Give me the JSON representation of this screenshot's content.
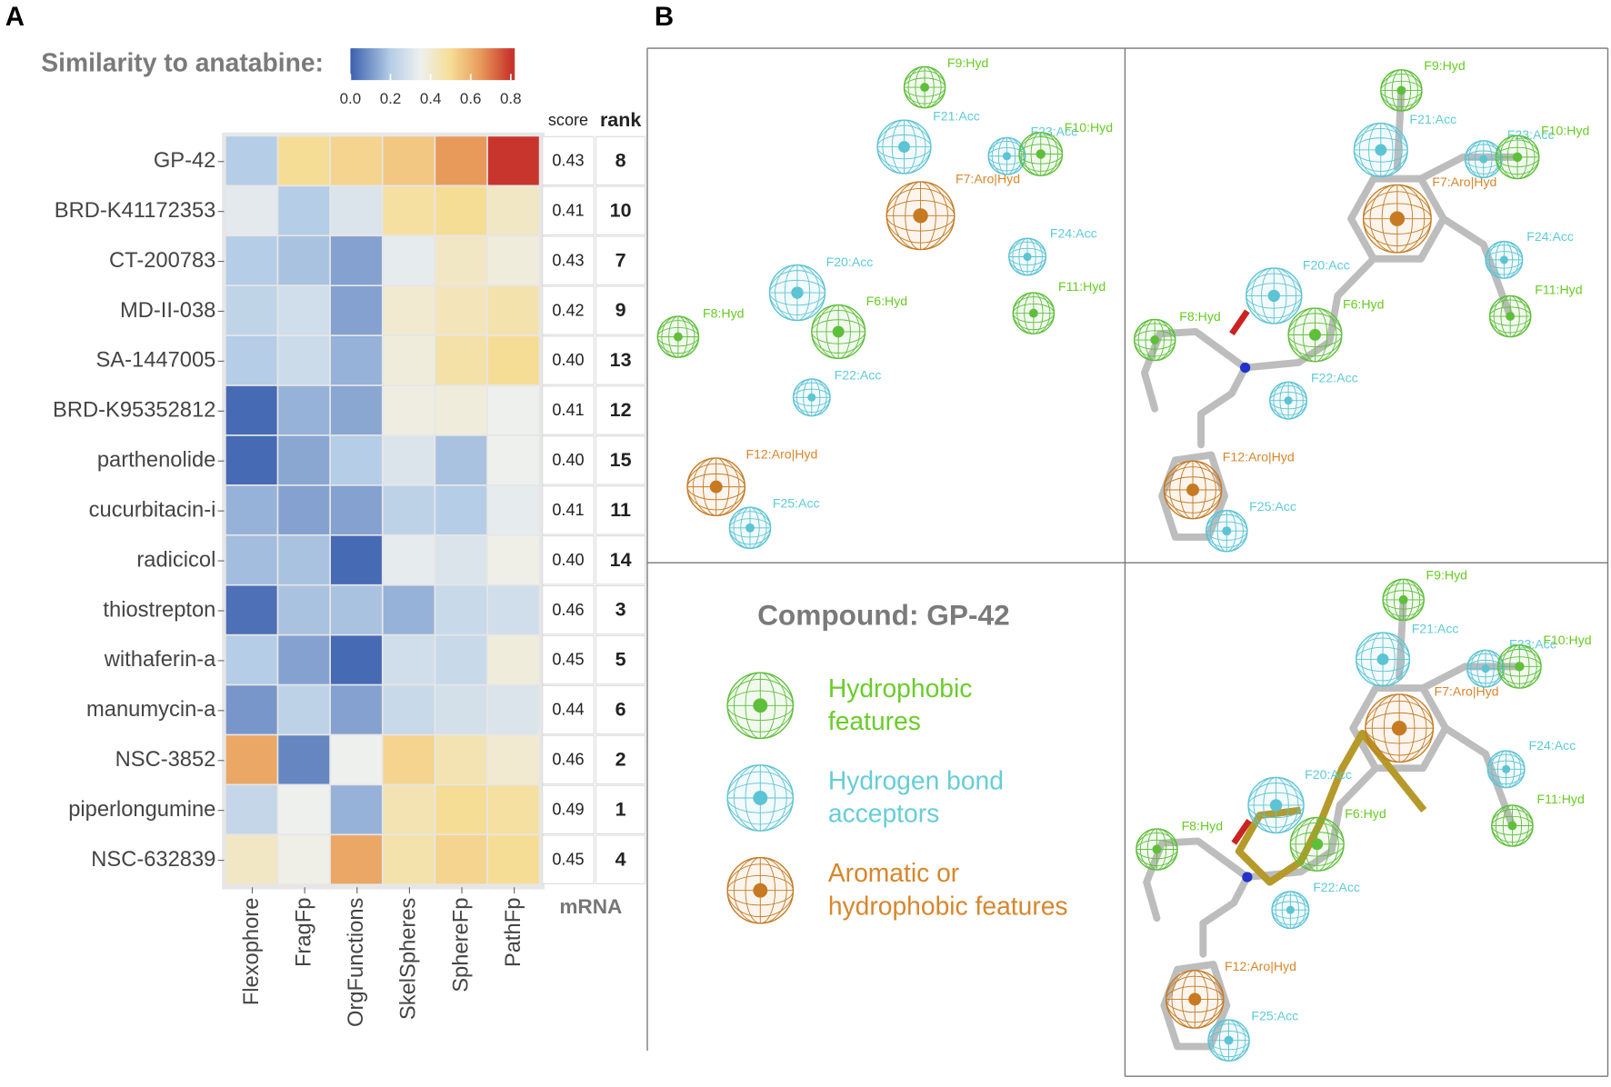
{
  "panel_labels": [
    "A",
    "B"
  ],
  "chart_data": {
    "type": "heatmap",
    "title": "Similarity to anatabine:",
    "rows": [
      "GP-42",
      "BRD-K41172353",
      "CT-200783",
      "MD-II-038",
      "SA-1447005",
      "BRD-K95352812",
      "parthenolide",
      "cucurbitacin-i",
      "radicicol",
      "thiostrepton",
      "withaferin-a",
      "manumycin-a",
      "NSC-3852",
      "piperlongumine",
      "NSC-632839"
    ],
    "columns": [
      "Flexophore",
      "FragFp",
      "OrgFunctions",
      "SkelSpheres",
      "SphereFp",
      "PathFp"
    ],
    "values": [
      [
        0.2,
        0.5,
        0.52,
        0.55,
        0.65,
        0.8
      ],
      [
        0.32,
        0.2,
        0.3,
        0.48,
        0.5,
        0.42
      ],
      [
        0.2,
        0.18,
        0.12,
        0.33,
        0.42,
        0.38
      ],
      [
        0.23,
        0.27,
        0.12,
        0.4,
        0.44,
        0.46
      ],
      [
        0.2,
        0.26,
        0.15,
        0.38,
        0.47,
        0.5
      ],
      [
        0.02,
        0.15,
        0.13,
        0.37,
        0.38,
        0.35
      ],
      [
        0.02,
        0.13,
        0.2,
        0.3,
        0.18,
        0.35
      ],
      [
        0.15,
        0.12,
        0.12,
        0.22,
        0.2,
        0.33
      ],
      [
        0.17,
        0.18,
        0.02,
        0.33,
        0.3,
        0.36
      ],
      [
        0.03,
        0.18,
        0.18,
        0.15,
        0.25,
        0.27
      ],
      [
        0.2,
        0.12,
        0.02,
        0.27,
        0.25,
        0.38
      ],
      [
        0.1,
        0.22,
        0.12,
        0.25,
        0.28,
        0.3
      ],
      [
        0.62,
        0.07,
        0.35,
        0.52,
        0.45,
        0.4
      ],
      [
        0.24,
        0.35,
        0.15,
        0.45,
        0.5,
        0.48
      ],
      [
        0.42,
        0.36,
        0.62,
        0.46,
        0.52,
        0.5
      ]
    ],
    "color_stops": [
      [
        0,
        "#3b5fae"
      ],
      [
        0.2,
        "#b5cde6"
      ],
      [
        0.35,
        "#eef0ee"
      ],
      [
        0.5,
        "#f6dd96"
      ],
      [
        0.65,
        "#e89a5a"
      ],
      [
        0.8,
        "#c8352c"
      ]
    ],
    "colorbar_lim": [
      0,
      0.82
    ],
    "colorbar_ticks": [
      {
        "value": 0,
        "label": "0.0"
      },
      {
        "value": 0.2,
        "label": "0.2"
      },
      {
        "value": 0.4,
        "label": "0.4"
      },
      {
        "value": 0.6,
        "label": "0.6"
      },
      {
        "value": 0.8,
        "label": "0.8"
      }
    ],
    "side_table": {
      "headers": [
        "score",
        "rank"
      ],
      "footer": "mRNA",
      "score": [
        0.43,
        0.41,
        0.43,
        0.42,
        0.4,
        0.41,
        0.4,
        0.41,
        0.4,
        0.46,
        0.45,
        0.44,
        0.46,
        0.49,
        0.45
      ],
      "score_labels": [
        "0.43",
        "0.41",
        "0.43",
        "0.42",
        "0.40",
        "0.41",
        "0.40",
        "0.41",
        "0.40",
        "0.46",
        "0.45",
        "0.44",
        "0.46",
        "0.49",
        "0.45"
      ],
      "rank": [
        8,
        10,
        7,
        9,
        13,
        12,
        15,
        11,
        14,
        3,
        5,
        6,
        2,
        1,
        4
      ]
    }
  },
  "structure": {
    "panels": [
      {
        "features": [
          "F9:Hyd",
          "F21:Acc",
          "F23:Acc",
          "F10:Hyd",
          "F7:Aro|Hyd",
          "F24:Acc",
          "F11:Hyd",
          "F20:Acc",
          "F6:Hyd",
          "F8:Hyd",
          "F22:Acc",
          "F12:Aro|Hyd",
          "F25:Acc"
        ]
      },
      {
        "features": [
          "F9:Hyd",
          "F21:Acc",
          "F23:Acc",
          "F10:Hyd",
          "F7:Aro|Hyd",
          "F24:Acc",
          "F11:Hyd",
          "F20:Acc",
          "F6:Hyd",
          "F8:Hyd",
          "F22:Acc",
          "F12:Aro|Hyd",
          "F25:Acc"
        ]
      },
      {
        "features": [
          "F9:Hyd",
          "F21:Acc",
          "F23:Acc",
          "F10:Hyd",
          "F7:Aro|Hyd",
          "F24:Acc",
          "F11:Hyd",
          "F20:Acc",
          "F6:Hyd",
          "F8:Hyd",
          "F22:Acc",
          "F12:Aro|Hyd",
          "F25:Acc"
        ]
      }
    ],
    "legend": {
      "title": "Compound: GP-42",
      "items": [
        {
          "lines": [
            "Hydrophobic",
            "features"
          ],
          "color": "#6acc2a"
        },
        {
          "lines": [
            "Hydrogen bond",
            "acceptors"
          ],
          "color": "#66cdd8"
        },
        {
          "lines": [
            "Aromatic or",
            "hydrophobic features"
          ],
          "color": "#d8862a"
        }
      ]
    }
  }
}
